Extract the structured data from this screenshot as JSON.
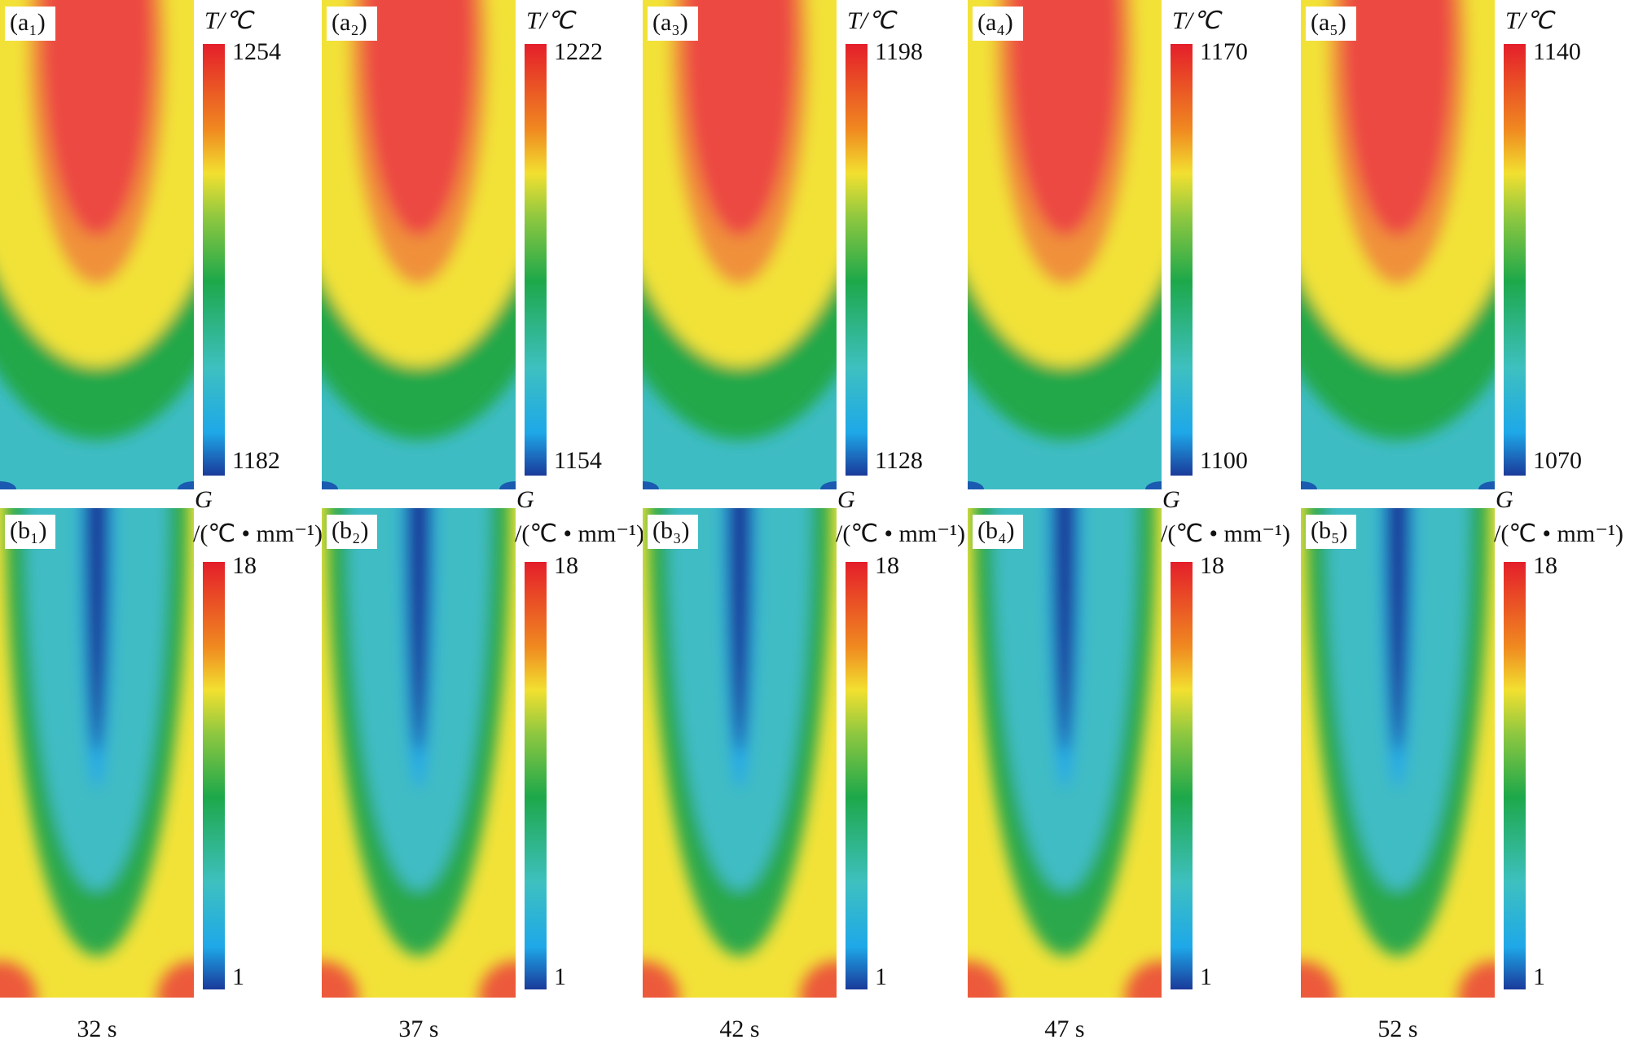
{
  "figure": {
    "columns": [
      {
        "top": {
          "label": "(a₁)",
          "unit": "T/℃",
          "max": 1254,
          "min": 1182
        },
        "bottom": {
          "label": "(b₁)",
          "symbol": "G",
          "unit": "/(℃ • mm⁻¹)",
          "max": 18,
          "min": 1
        },
        "time": "32 s"
      },
      {
        "top": {
          "label": "(a₂)",
          "unit": "T/℃",
          "max": 1222,
          "min": 1154
        },
        "bottom": {
          "label": "(b₂)",
          "symbol": "G",
          "unit": "/(℃ • mm⁻¹)",
          "max": 18,
          "min": 1
        },
        "time": "37 s"
      },
      {
        "top": {
          "label": "(a₃)",
          "unit": "T/℃",
          "max": 1198,
          "min": 1128
        },
        "bottom": {
          "label": "(b₃)",
          "symbol": "G",
          "unit": "/(℃ • mm⁻¹)",
          "max": 18,
          "min": 1
        },
        "time": "42 s"
      },
      {
        "top": {
          "label": "(a₄)",
          "unit": "T/℃",
          "max": 1170,
          "min": 1100
        },
        "bottom": {
          "label": "(b₄)",
          "symbol": "G",
          "unit": "/(℃ • mm⁻¹)",
          "max": 18,
          "min": 1
        },
        "time": "47 s"
      },
      {
        "top": {
          "label": "(a₅)",
          "unit": "T/℃",
          "max": 1140,
          "min": 1070
        },
        "bottom": {
          "label": "(b₅)",
          "symbol": "G",
          "unit": "/(℃ • mm⁻¹)",
          "max": 18,
          "min": 1
        },
        "time": "52 s"
      }
    ]
  }
}
